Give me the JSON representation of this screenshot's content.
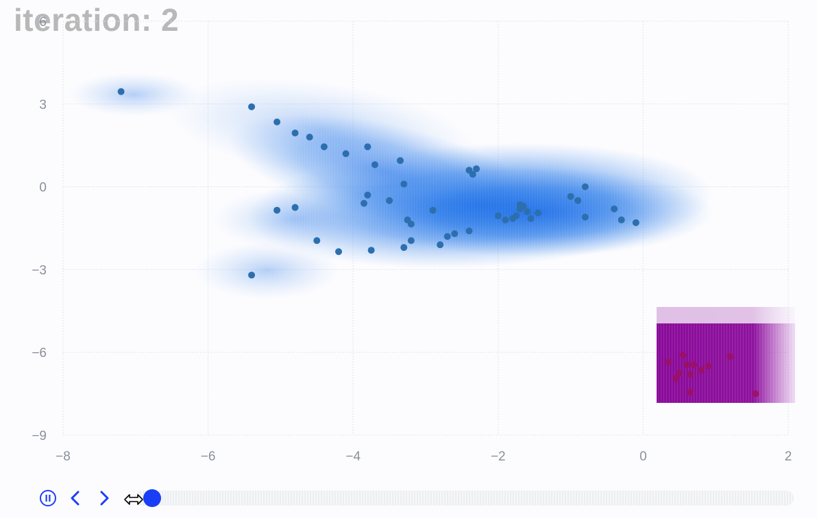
{
  "title": "iteration: 2",
  "controls": {
    "pause_icon": "pause-circle-icon",
    "prev_icon": "chevron-left-icon",
    "next_icon": "chevron-right-icon",
    "progress": 0.02,
    "accent": "#1a3ef5"
  },
  "chart_data": {
    "type": "scatter",
    "xlim": [
      -8,
      2
    ],
    "ylim": [
      -9,
      6
    ],
    "xticks": [
      -8,
      -6,
      -4,
      -2,
      0,
      2
    ],
    "yticks": [
      -9,
      -6,
      -3,
      0,
      3,
      6
    ],
    "grid": true,
    "colors": {
      "blue_density": "#1f6fe8",
      "purple_density": "#8a0a9a",
      "blue_points": "#2d6fae",
      "purple_points": "#9c1060"
    },
    "series": [
      {
        "color": "#2d6fae",
        "points": [
          [
            -7.2,
            3.45
          ],
          [
            -5.4,
            2.9
          ],
          [
            -5.05,
            2.35
          ],
          [
            -4.8,
            1.95
          ],
          [
            -4.6,
            1.8
          ],
          [
            -4.4,
            1.45
          ],
          [
            -4.1,
            1.2
          ],
          [
            -3.8,
            1.45
          ],
          [
            -3.7,
            0.8
          ],
          [
            -3.35,
            0.95
          ],
          [
            -2.4,
            0.6
          ],
          [
            -2.35,
            0.45
          ],
          [
            -2.3,
            0.65
          ],
          [
            -3.3,
            0.1
          ],
          [
            -3.8,
            -0.3
          ],
          [
            -3.85,
            -0.6
          ],
          [
            -3.5,
            -0.5
          ],
          [
            -5.05,
            -0.85
          ],
          [
            -4.8,
            -0.75
          ],
          [
            -2.9,
            -0.85
          ],
          [
            -3.25,
            -1.2
          ],
          [
            -3.2,
            -1.35
          ],
          [
            -2.4,
            -1.6
          ],
          [
            -2.6,
            -1.7
          ],
          [
            -2.7,
            -1.8
          ],
          [
            -3.2,
            -1.95
          ],
          [
            -3.3,
            -2.2
          ],
          [
            -2.8,
            -2.1
          ],
          [
            -4.5,
            -1.95
          ],
          [
            -4.2,
            -2.35
          ],
          [
            -3.75,
            -2.3
          ],
          [
            -5.4,
            -3.2
          ],
          [
            -2.0,
            -1.05
          ],
          [
            -1.9,
            -1.2
          ],
          [
            -1.8,
            -1.15
          ],
          [
            -1.75,
            -1.05
          ],
          [
            -1.7,
            -0.65
          ],
          [
            -1.65,
            -0.7
          ],
          [
            -1.6,
            -0.9
          ],
          [
            -1.55,
            -1.15
          ],
          [
            -1.45,
            -0.95
          ],
          [
            -1.7,
            -0.8
          ],
          [
            -1.0,
            -0.35
          ],
          [
            -0.9,
            -0.5
          ],
          [
            -0.8,
            0.0
          ],
          [
            -0.8,
            -1.1
          ],
          [
            -0.4,
            -0.8
          ],
          [
            -0.3,
            -1.2
          ],
          [
            -0.1,
            -1.3
          ]
        ]
      },
      {
        "color": "#9c1060",
        "points": [
          [
            0.35,
            -6.35
          ],
          [
            0.55,
            -6.1
          ],
          [
            0.5,
            -6.75
          ],
          [
            0.45,
            -6.95
          ],
          [
            0.6,
            -6.45
          ],
          [
            0.7,
            -6.45
          ],
          [
            0.65,
            -6.8
          ],
          [
            0.8,
            -6.65
          ],
          [
            0.9,
            -6.5
          ],
          [
            0.65,
            -7.45
          ],
          [
            1.2,
            -6.15
          ],
          [
            1.55,
            -7.5
          ]
        ]
      }
    ]
  }
}
